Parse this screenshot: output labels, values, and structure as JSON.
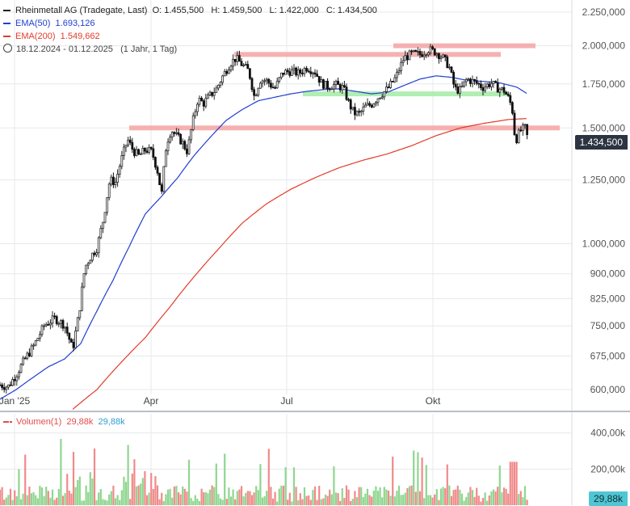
{
  "legend": {
    "title": "Rheinmetall AG (Tradegate, Last)",
    "open": "O: 1.455,500",
    "high": "H: 1.459,500",
    "low": "L: 1.422,000",
    "close": "C: 1.434,500",
    "ema50_label": "EMA(50)",
    "ema50_value": "1.693,126",
    "ema200_label": "EMA(200)",
    "ema200_value": "1.549,662",
    "range": "18.12.2024 - 01.12.2025",
    "period": "(1 Jahr, 1 Tag)"
  },
  "volume_legend": {
    "label": "Volumen(1)",
    "value_red": "29,88k",
    "value_blue": "29,88k"
  },
  "badges": {
    "last_price": "1.434,500",
    "last_volume": "29,88k"
  },
  "colors": {
    "up": "#3ba54a",
    "down": "#d93838",
    "ema50": "#1f3fd1",
    "ema200": "#e23b2b",
    "resistance": "#f4a3a3",
    "support": "#a7ecaa",
    "vol_up": "#8fd68f",
    "vol_down": "#f08a8a"
  },
  "chart_data": {
    "type": "candlestick",
    "title": "Rheinmetall AG (Tradegate, Last)",
    "x_ticks": [
      "Jan '25",
      "Apr",
      "Jul",
      "Okt"
    ],
    "y_ticks": [
      "2.250,000",
      "2.000,000",
      "1.750,000",
      "1.500,000",
      "1.250,000",
      "1.000,000",
      "900,000",
      "825,000",
      "750,000",
      "675,000",
      "600,000"
    ],
    "y_tick_values": [
      2250,
      2000,
      1750,
      1500,
      1250,
      1000,
      900,
      825,
      750,
      675,
      600
    ],
    "y_scale": "log",
    "ylim": [
      570,
      2400
    ],
    "grid": true,
    "last": {
      "open": 1455.5,
      "high": 1459.5,
      "low": 1422.0,
      "close": 1434.5
    },
    "price_keypoints": [
      [
        0,
        610
      ],
      [
        10,
        606
      ],
      [
        20,
        632
      ],
      [
        30,
        665
      ],
      [
        42,
        700
      ],
      [
        55,
        752
      ],
      [
        68,
        770
      ],
      [
        80,
        752
      ],
      [
        90,
        690
      ],
      [
        98,
        786
      ],
      [
        105,
        920
      ],
      [
        112,
        955
      ],
      [
        120,
        985
      ],
      [
        128,
        1090
      ],
      [
        136,
        1250
      ],
      [
        143,
        1240
      ],
      [
        150,
        1340
      ],
      [
        158,
        1440
      ],
      [
        165,
        1385
      ],
      [
        172,
        1360
      ],
      [
        180,
        1390
      ],
      [
        188,
        1380
      ],
      [
        195,
        1290
      ],
      [
        200,
        1185
      ],
      [
        206,
        1420
      ],
      [
        212,
        1490
      ],
      [
        218,
        1460
      ],
      [
        225,
        1430
      ],
      [
        232,
        1380
      ],
      [
        238,
        1520
      ],
      [
        245,
        1660
      ],
      [
        252,
        1635
      ],
      [
        260,
        1680
      ],
      [
        268,
        1720
      ],
      [
        276,
        1800
      ],
      [
        285,
        1880
      ],
      [
        292,
        1915
      ],
      [
        300,
        1870
      ],
      [
        308,
        1830
      ],
      [
        315,
        1670
      ],
      [
        322,
        1775
      ],
      [
        330,
        1770
      ],
      [
        340,
        1720
      ],
      [
        350,
        1820
      ],
      [
        360,
        1830
      ],
      [
        370,
        1815
      ],
      [
        380,
        1855
      ],
      [
        390,
        1825
      ],
      [
        398,
        1755
      ],
      [
        405,
        1735
      ],
      [
        415,
        1745
      ],
      [
        425,
        1725
      ],
      [
        432,
        1635
      ],
      [
        438,
        1580
      ],
      [
        445,
        1575
      ],
      [
        452,
        1615
      ],
      [
        460,
        1630
      ],
      [
        470,
        1680
      ],
      [
        480,
        1720
      ],
      [
        490,
        1790
      ],
      [
        500,
        1915
      ],
      [
        510,
        1945
      ],
      [
        520,
        1940
      ],
      [
        530,
        1975
      ],
      [
        540,
        1955
      ],
      [
        548,
        1920
      ],
      [
        556,
        1860
      ],
      [
        563,
        1720
      ],
      [
        570,
        1710
      ],
      [
        578,
        1780
      ],
      [
        588,
        1760
      ],
      [
        598,
        1730
      ],
      [
        608,
        1755
      ],
      [
        616,
        1725
      ],
      [
        624,
        1710
      ],
      [
        630,
        1660
      ],
      [
        634,
        1610
      ],
      [
        638,
        1430
      ],
      [
        644,
        1485
      ],
      [
        650,
        1500
      ],
      [
        654,
        1434.5
      ]
    ],
    "ema50_keypoints": [
      [
        0,
        580
      ],
      [
        20,
        600
      ],
      [
        40,
        625
      ],
      [
        60,
        650
      ],
      [
        80,
        668
      ],
      [
        100,
        705
      ],
      [
        120,
        790
      ],
      [
        140,
        880
      ],
      [
        160,
        990
      ],
      [
        180,
        1110
      ],
      [
        200,
        1180
      ],
      [
        220,
        1260
      ],
      [
        240,
        1360
      ],
      [
        260,
        1450
      ],
      [
        280,
        1540
      ],
      [
        300,
        1600
      ],
      [
        320,
        1650
      ],
      [
        340,
        1670
      ],
      [
        360,
        1690
      ],
      [
        380,
        1705
      ],
      [
        400,
        1715
      ],
      [
        420,
        1720
      ],
      [
        440,
        1705
      ],
      [
        460,
        1690
      ],
      [
        480,
        1700
      ],
      [
        500,
        1740
      ],
      [
        520,
        1780
      ],
      [
        540,
        1800
      ],
      [
        560,
        1790
      ],
      [
        580,
        1770
      ],
      [
        600,
        1765
      ],
      [
        620,
        1755
      ],
      [
        640,
        1730
      ],
      [
        652,
        1693
      ]
    ],
    "ema200_keypoints": [
      [
        90,
        560
      ],
      [
        120,
        600
      ],
      [
        150,
        660
      ],
      [
        180,
        720
      ],
      [
        210,
        800
      ],
      [
        240,
        890
      ],
      [
        270,
        980
      ],
      [
        300,
        1075
      ],
      [
        330,
        1150
      ],
      [
        360,
        1210
      ],
      [
        390,
        1260
      ],
      [
        420,
        1305
      ],
      [
        450,
        1340
      ],
      [
        480,
        1370
      ],
      [
        510,
        1410
      ],
      [
        540,
        1460
      ],
      [
        570,
        1500
      ],
      [
        600,
        1525
      ],
      [
        630,
        1545
      ],
      [
        652,
        1549.7
      ]
    ],
    "resistance_levels": [
      {
        "value": 2000,
        "x_from": 487,
        "x_to": 663
      },
      {
        "value": 1940,
        "x_from": 290,
        "x_to": 620
      },
      {
        "value": 1500,
        "x_from": 160,
        "x_to": 693
      }
    ],
    "support_levels": [
      {
        "value": 1690,
        "x_from": 375,
        "x_to": 630
      }
    ],
    "volume": {
      "y_ticks": [
        "400,00k",
        "200,00k"
      ],
      "y_tick_values": [
        400000,
        200000
      ],
      "ylim": [
        0,
        470000
      ],
      "last": 29880
    }
  }
}
